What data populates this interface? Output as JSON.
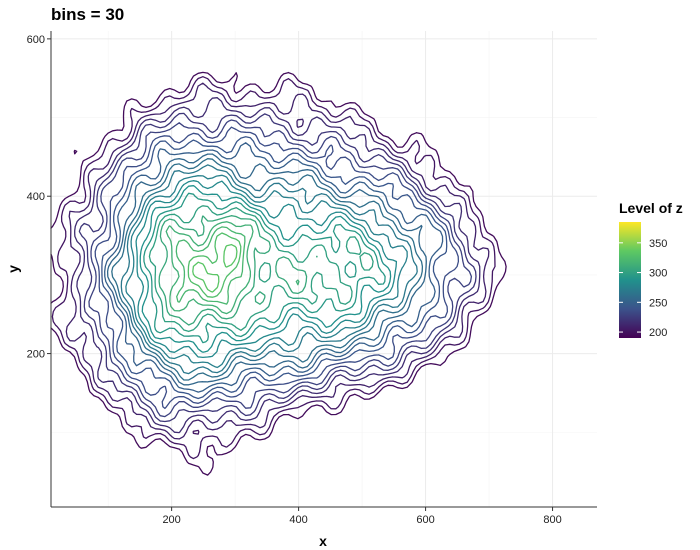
{
  "chart_data": {
    "type": "contour",
    "title": "bins = 30",
    "xlabel": "x",
    "ylabel": "y",
    "xlim": [
      10,
      870
    ],
    "ylim": [
      5,
      610
    ],
    "x_ticks": [
      200,
      400,
      600,
      800
    ],
    "y_ticks": [
      200,
      400,
      600
    ],
    "grid": true,
    "legend": {
      "title": "Level of z",
      "placement": "right",
      "ticks": [
        200,
        250,
        300,
        350
      ],
      "range": [
        190,
        385
      ],
      "colormap": [
        "#440154",
        "#3b528b",
        "#21918c",
        "#5ec962",
        "#fde725"
      ]
    },
    "bins": 30,
    "level_range": [
      190,
      385
    ],
    "peaks": [
      {
        "x": 200,
        "y": 300,
        "z": 385
      },
      {
        "x": 295,
        "y": 345,
        "z": 372
      },
      {
        "x": 290,
        "y": 285,
        "z": 330
      },
      {
        "x": 480,
        "y": 280,
        "z": 318
      },
      {
        "x": 510,
        "y": 330,
        "z": 318
      }
    ]
  },
  "colors": {
    "panel_background": "#ffffff",
    "grid_major": "#ebebeb",
    "grid_minor": "#f4f4f4"
  }
}
